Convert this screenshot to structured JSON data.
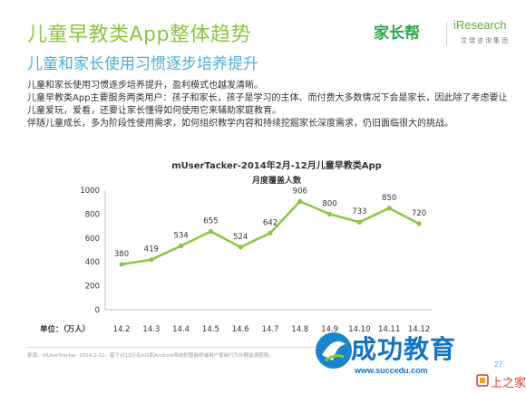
{
  "header": {
    "title": "儿童早教类App整体趋势",
    "subtitle": "儿童和家长使用习惯逐步培养提升"
  },
  "logos": {
    "cn": "家长帮",
    "en": "iResearch",
    "en_cn": "艾瑞咨询集团"
  },
  "body": {
    "lines": [
      "儿童和家长使用习惯逐步培养提升，盈利模式也越发清晰。",
      "儿童早教类App主要服务两类用户：孩子和家长，孩子是学习的主体、而付费大多数情况下会是家长，因此除了考虑要让",
      "儿童爱玩，爱看，还要让家长懂得如何使用它来辅助家庭教育。",
      "伴随儿童成长，多为阶段性使用需求，如何组织教学内容和持续挖掘家长深度需求，仍旧面临很大的挑战。"
    ]
  },
  "chart_data": {
    "type": "line",
    "title": "mUserTacker-2014年2月-12月儿童早教类App",
    "subtitle": "月度覆盖人数",
    "xlabel": "",
    "ylabel": "单位：（万人）",
    "categories": [
      "14.2",
      "14.3",
      "14.4",
      "14.5",
      "14.6",
      "14.7",
      "14.8",
      "14.9",
      "14.10",
      "14.11",
      "14.12"
    ],
    "values": [
      380,
      419,
      534,
      655,
      524,
      642,
      906,
      800,
      733,
      850,
      720
    ],
    "ylim": [
      0,
      1000
    ],
    "yticks": [
      "0",
      "200",
      "400",
      "600",
      "800",
      "1000"
    ],
    "grid": false,
    "series_color": "#8cc63f"
  },
  "footer": {
    "source": "来源：mUserTracker. 2014.2-12。基于对13万名iOS和Android系统的智能终端用户使用行为长期监测获得。"
  },
  "brand": {
    "name": "成功教育",
    "url": "www.succedu.com",
    "page": "27",
    "badge": "上之家"
  }
}
